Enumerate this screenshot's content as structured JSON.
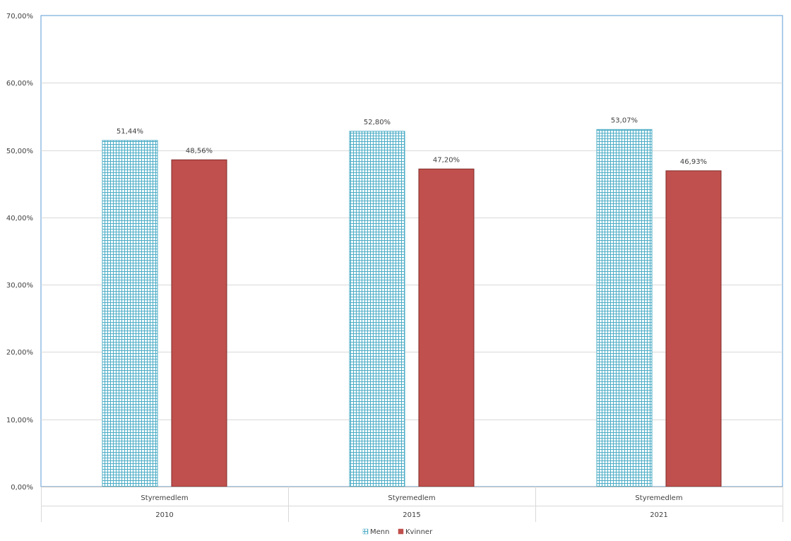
{
  "chart_data": {
    "type": "bar",
    "title": "",
    "xlabel": "",
    "ylabel": "",
    "ylim": [
      0,
      70
    ],
    "y_ticks": [
      0,
      10,
      20,
      30,
      40,
      50,
      60,
      70
    ],
    "y_tick_labels": [
      "0,00%",
      "10,00%",
      "20,00%",
      "30,00%",
      "40,00%",
      "50,00%",
      "60,00%",
      "70,00%"
    ],
    "categories": [
      "Styremedlem",
      "Styremedlem",
      "Styremedlem"
    ],
    "groups": [
      "2010",
      "2015",
      "2021"
    ],
    "series": [
      {
        "name": "Menn",
        "values": [
          51.44,
          52.8,
          53.07
        ],
        "labels": [
          "51,44%",
          "52,80%",
          "53,07%"
        ],
        "color": "#4bacc6",
        "pattern": "grid"
      },
      {
        "name": "Kvinner",
        "values": [
          48.56,
          47.2,
          46.93
        ],
        "labels": [
          "48,56%",
          "47,20%",
          "46,93%"
        ],
        "color": "#c0504d",
        "pattern": "solid"
      }
    ],
    "grid": true,
    "legend_position": "bottom"
  }
}
